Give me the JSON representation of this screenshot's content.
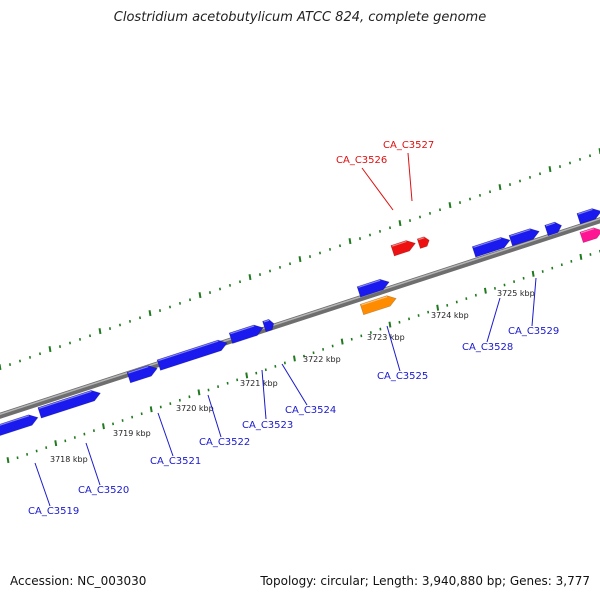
{
  "title": "Clostridium acetobutylicum ATCC 824, complete genome",
  "footer": {
    "accession": "Accession: NC_003030",
    "summary": "Topology: circular; Length: 3,940,880 bp; Genes: 3,777"
  },
  "colors": {
    "forward_gene": "#1a1aee",
    "reverse_gene": "#ee1111",
    "highlight_gene": "#ff8c00",
    "other_gene": "#ff1493",
    "backbone": "#808080",
    "ticks": "#1f7a1f"
  },
  "kbp_labels": [
    "3718 kbp",
    "3719 kbp",
    "3720 kbp",
    "3721 kbp",
    "3722 kbp",
    "3723 kbp",
    "3724 kbp",
    "3725 kbp"
  ],
  "gene_labels": [
    {
      "id": "CA_C3519",
      "strand": "forward"
    },
    {
      "id": "CA_C3520",
      "strand": "forward"
    },
    {
      "id": "CA_C3521",
      "strand": "forward"
    },
    {
      "id": "CA_C3522",
      "strand": "forward"
    },
    {
      "id": "CA_C3523",
      "strand": "forward"
    },
    {
      "id": "CA_C3524",
      "strand": "forward"
    },
    {
      "id": "CA_C3525",
      "strand": "forward"
    },
    {
      "id": "CA_C3526",
      "strand": "reverse"
    },
    {
      "id": "CA_C3527",
      "strand": "reverse"
    },
    {
      "id": "CA_C3528",
      "strand": "forward"
    },
    {
      "id": "CA_C3529",
      "strand": "forward"
    }
  ]
}
